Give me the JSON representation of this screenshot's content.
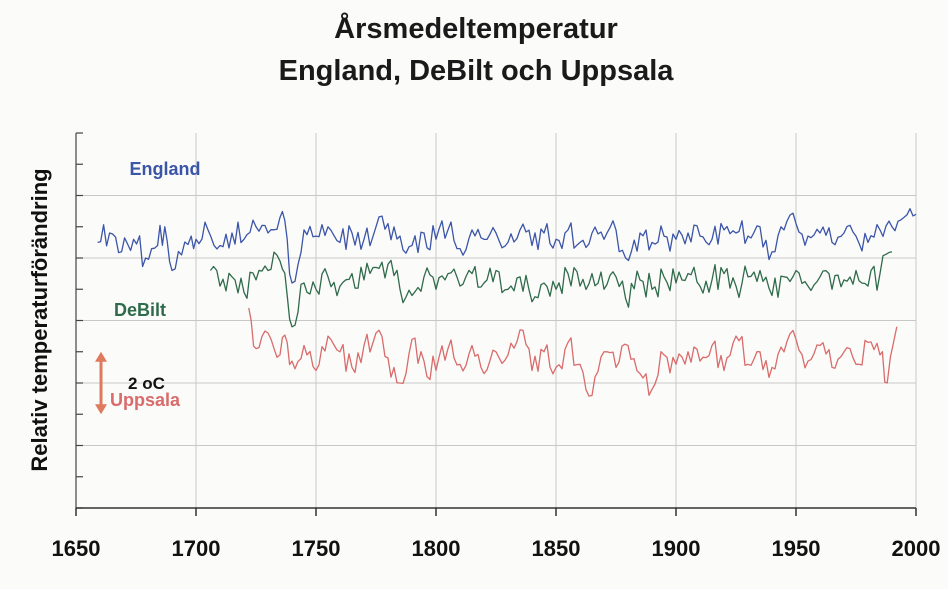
{
  "chart_data": {
    "type": "line",
    "title": "Årsmedeltemperatur",
    "subtitle": "England, DeBilt och Uppsala",
    "xlabel": "",
    "ylabel": "Relativ temperaturförändring",
    "xlim": [
      1650,
      2000
    ],
    "x_ticks": [
      1650,
      1700,
      1750,
      1800,
      1850,
      1900,
      1950,
      2000
    ],
    "ylim": [
      0,
      12
    ],
    "grid": true,
    "scale_bar": {
      "label": "2",
      "unit": "oC",
      "value": 2
    },
    "series": [
      {
        "name": "England",
        "color": "#3b55a8",
        "label_position": "left",
        "x": [
          1659,
          1664,
          1669,
          1674,
          1679,
          1684,
          1687,
          1690,
          1694,
          1698,
          1700,
          1705,
          1710,
          1715,
          1720,
          1725,
          1730,
          1735,
          1738,
          1740,
          1745,
          1750,
          1755,
          1760,
          1765,
          1770,
          1775,
          1780,
          1785,
          1790,
          1795,
          1800,
          1805,
          1810,
          1815,
          1820,
          1825,
          1830,
          1835,
          1840,
          1845,
          1850,
          1855,
          1860,
          1865,
          1870,
          1875,
          1879,
          1885,
          1890,
          1895,
          1900,
          1905,
          1910,
          1915,
          1920,
          1925,
          1930,
          1935,
          1940,
          1945,
          1950,
          1955,
          1960,
          1965,
          1970,
          1975,
          1980,
          1985,
          1990,
          1995,
          2000
        ],
        "values": [
          8.5,
          8.8,
          8.2,
          8.6,
          8.0,
          8.4,
          9.0,
          7.6,
          8.1,
          8.7,
          8.6,
          8.9,
          8.4,
          8.8,
          8.6,
          9.0,
          8.8,
          9.3,
          8.6,
          7.2,
          8.9,
          8.7,
          9.0,
          8.5,
          8.8,
          8.6,
          9.0,
          9.1,
          8.7,
          8.4,
          8.8,
          8.6,
          8.9,
          8.3,
          8.9,
          8.6,
          8.8,
          8.5,
          8.9,
          8.4,
          8.8,
          8.6,
          8.9,
          8.5,
          8.8,
          8.6,
          8.9,
          8.0,
          8.8,
          8.5,
          8.7,
          8.6,
          8.8,
          8.7,
          8.6,
          8.9,
          8.8,
          8.7,
          9.0,
          8.2,
          8.9,
          9.1,
          8.7,
          8.8,
          8.5,
          8.8,
          8.7,
          8.5,
          8.9,
          9.0,
          9.3,
          9.4
        ]
      },
      {
        "name": "DeBilt",
        "color": "#2f6b4a",
        "label_position": "left",
        "x": [
          1706,
          1710,
          1715,
          1720,
          1725,
          1730,
          1735,
          1738,
          1740,
          1745,
          1750,
          1755,
          1760,
          1765,
          1770,
          1775,
          1780,
          1785,
          1790,
          1795,
          1800,
          1805,
          1810,
          1815,
          1820,
          1825,
          1830,
          1835,
          1840,
          1845,
          1850,
          1855,
          1860,
          1865,
          1870,
          1875,
          1879,
          1885,
          1890,
          1895,
          1900,
          1905,
          1910,
          1915,
          1920,
          1925,
          1930,
          1935,
          1940,
          1945,
          1950,
          1955,
          1960,
          1965,
          1970,
          1975,
          1980,
          1985,
          1990
        ],
        "values": [
          7.6,
          7.1,
          7.4,
          6.9,
          7.3,
          7.6,
          7.9,
          6.8,
          5.8,
          7.2,
          7.0,
          7.4,
          7.1,
          7.5,
          7.3,
          7.7,
          7.8,
          7.0,
          6.8,
          7.4,
          7.0,
          7.5,
          7.1,
          7.5,
          7.2,
          7.6,
          7.0,
          7.4,
          6.6,
          7.2,
          7.0,
          7.5,
          7.1,
          7.5,
          7.0,
          7.4,
          6.7,
          7.3,
          7.0,
          7.4,
          7.2,
          7.5,
          7.1,
          7.3,
          7.5,
          7.1,
          7.4,
          7.6,
          6.8,
          7.4,
          7.6,
          7.1,
          7.4,
          7.0,
          7.3,
          7.6,
          7.1,
          7.5,
          8.2
        ]
      },
      {
        "name": "Uppsala",
        "color": "#d96b6b",
        "label_position": "left",
        "x": [
          1722,
          1725,
          1730,
          1735,
          1738,
          1740,
          1745,
          1750,
          1755,
          1760,
          1765,
          1770,
          1775,
          1780,
          1785,
          1790,
          1795,
          1800,
          1805,
          1810,
          1815,
          1820,
          1825,
          1830,
          1835,
          1840,
          1845,
          1850,
          1855,
          1860,
          1865,
          1870,
          1875,
          1880,
          1885,
          1890,
          1895,
          1900,
          1905,
          1910,
          1915,
          1920,
          1925,
          1930,
          1935,
          1940,
          1945,
          1950,
          1955,
          1960,
          1965,
          1970,
          1975,
          1980,
          1985,
          1988,
          1992
        ],
        "values": [
          6.4,
          5.1,
          5.6,
          4.9,
          5.3,
          4.7,
          5.2,
          4.4,
          5.5,
          5.0,
          4.5,
          5.2,
          5.6,
          4.8,
          4.0,
          5.4,
          4.7,
          4.4,
          5.1,
          4.6,
          5.2,
          4.3,
          5.0,
          4.9,
          5.7,
          4.4,
          5.0,
          4.5,
          5.3,
          4.6,
          3.6,
          5.0,
          4.5,
          5.2,
          4.3,
          3.8,
          4.9,
          4.6,
          5.0,
          4.7,
          5.2,
          4.4,
          5.5,
          4.6,
          5.0,
          4.5,
          5.0,
          5.4,
          4.7,
          5.2,
          4.5,
          5.0,
          4.6,
          5.3,
          4.9,
          4.0,
          5.8
        ]
      }
    ]
  }
}
